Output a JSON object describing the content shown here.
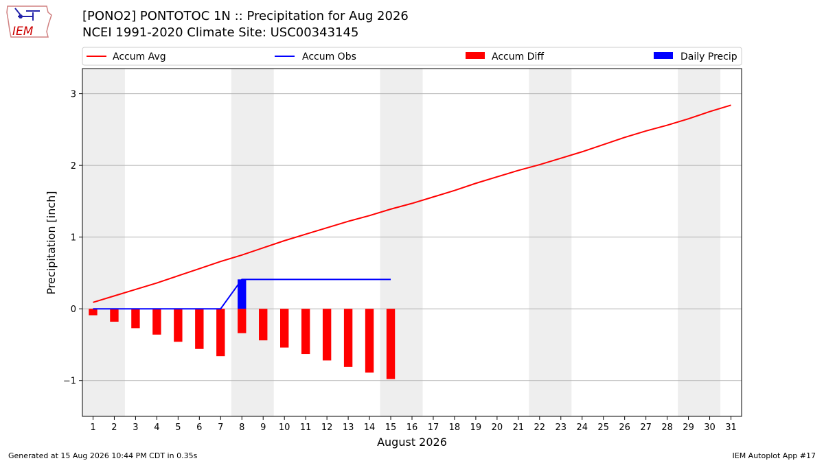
{
  "header": {
    "logo_text": "IEM",
    "title": "[PONO2] PONTOTOC 1N :: Precipitation for Aug 2026",
    "subtitle": "NCEI 1991-2020 Climate Site: USC00343145"
  },
  "footer": {
    "generated": "Generated at 15 Aug 2026 10:44 PM CDT in 0.35s",
    "app": "IEM Autoplot App #17"
  },
  "colors": {
    "avg": "#ff0000",
    "obs": "#0000ff",
    "diff": "#ff0000",
    "daily": "#0000ff",
    "weekend_shade": "#eeeeee",
    "grid": "#b0b0b0"
  },
  "chart_data": {
    "type": "line",
    "xlabel": "August 2026",
    "ylabel": "Precipitation [inch]",
    "xlim": [
      0.5,
      31.5
    ],
    "ylim": [
      -1.5,
      3.35
    ],
    "yticks": [
      -1,
      0,
      1,
      2,
      3
    ],
    "ytick_labels": [
      "−1",
      "0",
      "1",
      "2",
      "3"
    ],
    "x": [
      1,
      2,
      3,
      4,
      5,
      6,
      7,
      8,
      9,
      10,
      11,
      12,
      13,
      14,
      15,
      16,
      17,
      18,
      19,
      20,
      21,
      22,
      23,
      24,
      25,
      26,
      27,
      28,
      29,
      30,
      31
    ],
    "legend_position": "top",
    "legend": [
      "Accum Avg",
      "Accum Obs",
      "Accum Diff",
      "Daily Precip"
    ],
    "weekend_spans": [
      [
        0.5,
        2.5
      ],
      [
        7.5,
        9.5
      ],
      [
        14.5,
        16.5
      ],
      [
        21.5,
        23.5
      ],
      [
        28.5,
        30.5
      ]
    ],
    "accum_avg": [
      0.09,
      0.18,
      0.27,
      0.36,
      0.46,
      0.56,
      0.66,
      0.75,
      0.85,
      0.95,
      1.04,
      1.13,
      1.22,
      1.3,
      1.39,
      1.47,
      1.56,
      1.65,
      1.75,
      1.84,
      1.93,
      2.01,
      2.1,
      2.19,
      2.29,
      2.39,
      2.48,
      2.56,
      2.65,
      2.75,
      2.84
    ],
    "accum_obs": [
      0,
      0,
      0,
      0,
      0,
      0,
      0,
      0.41,
      0.41,
      0.41,
      0.41,
      0.41,
      0.41,
      0.41,
      0.41
    ],
    "accum_diff": [
      -0.09,
      -0.18,
      -0.27,
      -0.36,
      -0.46,
      -0.56,
      -0.66,
      -0.34,
      -0.44,
      -0.54,
      -0.63,
      -0.72,
      -0.81,
      -0.89,
      -0.98
    ],
    "daily_precip": [
      0,
      0,
      0,
      0,
      0,
      0,
      0,
      0.41,
      0,
      0,
      0,
      0,
      0,
      0,
      0
    ]
  }
}
